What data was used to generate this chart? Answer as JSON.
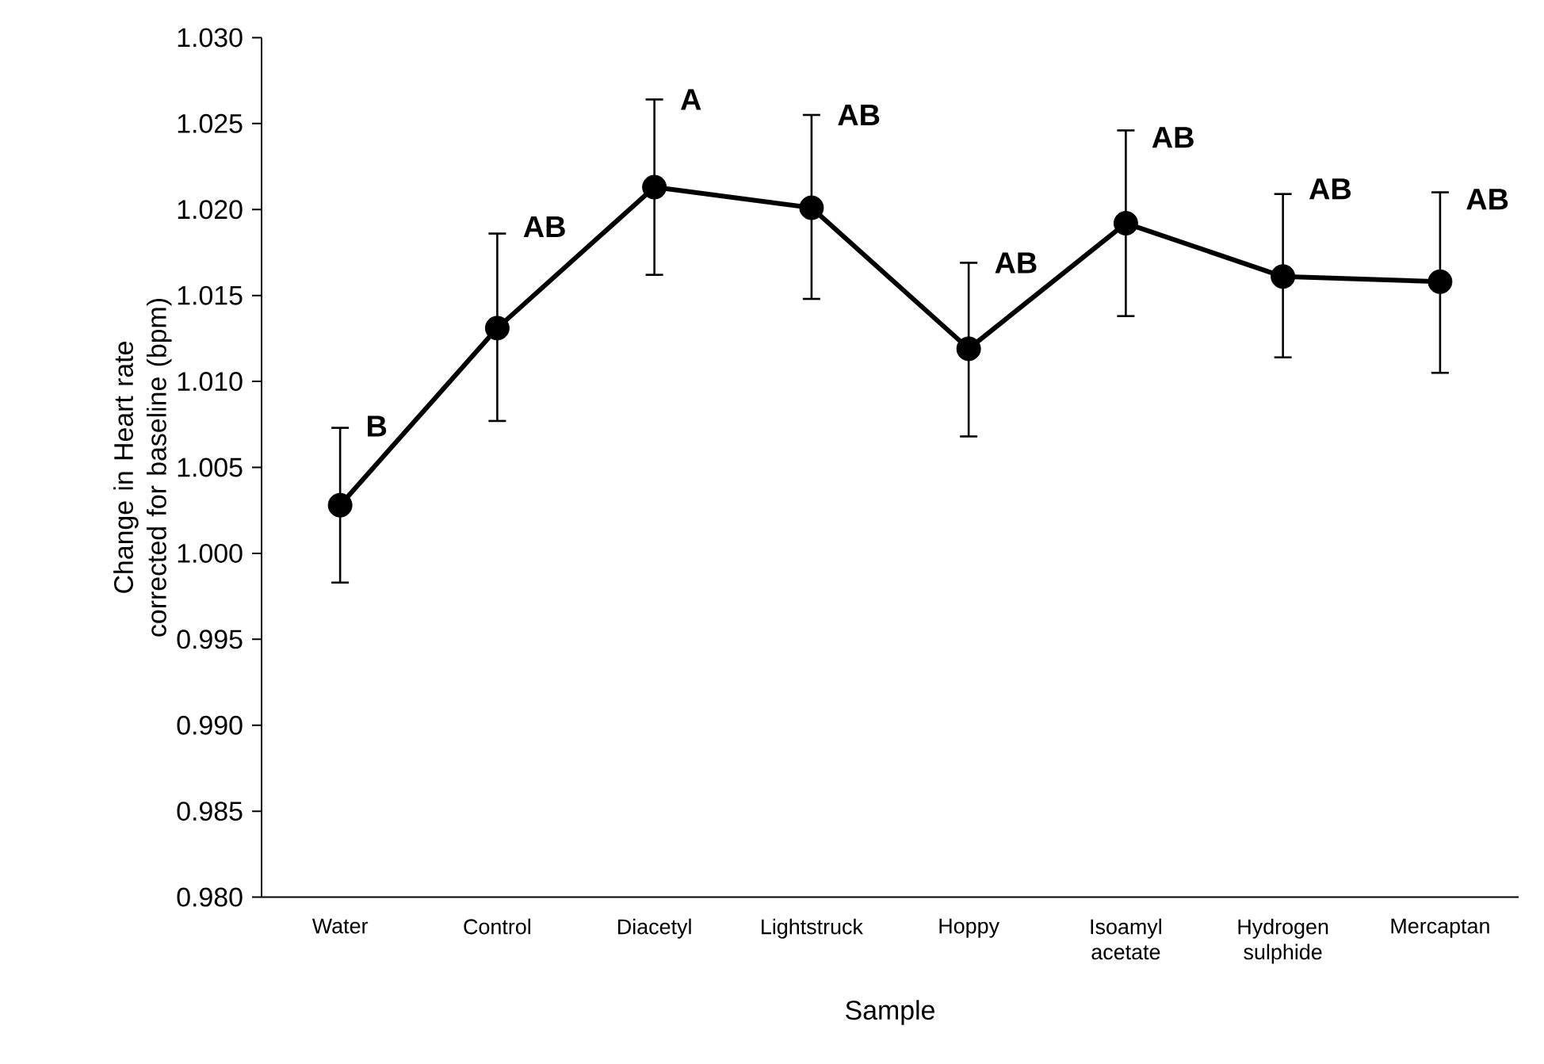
{
  "chart_data": {
    "type": "line",
    "xlabel": "Sample",
    "ylabel": "Change in Heart rate corrected for baseline (bpm)",
    "categories": [
      "Water",
      "Control",
      "Diacetyl",
      "Lightstruck",
      "Hoppy",
      "Isoamyl acetate",
      "Hydrogen sulphide",
      "Mercaptan"
    ],
    "series": [
      {
        "color": "#000000",
        "values": [
          1.0028,
          1.0131,
          1.0213,
          1.0201,
          1.0119,
          1.0192,
          1.0161,
          1.0158
        ],
        "errors": [
          [
            0.9983,
            1.0073
          ],
          [
            1.0077,
            1.0186
          ],
          [
            1.0162,
            1.0264
          ],
          [
            1.0148,
            1.0255
          ],
          [
            1.0068,
            1.0169
          ],
          [
            1.0138,
            1.0246
          ],
          [
            1.0114,
            1.0209
          ],
          [
            1.0105,
            1.021
          ]
        ]
      }
    ],
    "ylim": [
      0.98,
      1.03
    ],
    "yticks": [
      {
        "value": 0.98,
        "label": "0.980"
      },
      {
        "value": 0.985,
        "label": "0.985"
      },
      {
        "value": 0.99,
        "label": "0.990"
      },
      {
        "value": 0.995,
        "label": "0.995"
      },
      {
        "value": 1.0,
        "label": "1.000"
      },
      {
        "value": 1.005,
        "label": "1.005"
      },
      {
        "value": 1.01,
        "label": "1.010"
      },
      {
        "value": 1.015,
        "label": "1.015"
      },
      {
        "value": 1.02,
        "label": "1.020"
      },
      {
        "value": 1.025,
        "label": "1.025"
      },
      {
        "value": 1.03,
        "label": "1.030"
      }
    ],
    "annotations": [
      {
        "text": "B",
        "x": "Water",
        "y": 1.0074
      },
      {
        "text": "AB",
        "x": "Control",
        "y": 1.019
      },
      {
        "text": "A",
        "x": "Diacetyl",
        "y": 1.0264
      },
      {
        "text": "AB",
        "x": "Lightstruck",
        "y": 1.0255
      },
      {
        "text": "AB",
        "x": "Hoppy",
        "y": 1.0169
      },
      {
        "text": "AB",
        "x": "Isoamyl acetate",
        "y": 1.0242
      },
      {
        "text": "AB",
        "x": "Hydrogen sulphide",
        "y": 1.0212
      },
      {
        "text": "AB",
        "x": "Mercaptan",
        "y": 1.0206
      }
    ],
    "grid": false,
    "marker": "circle",
    "line_style": "solid"
  }
}
